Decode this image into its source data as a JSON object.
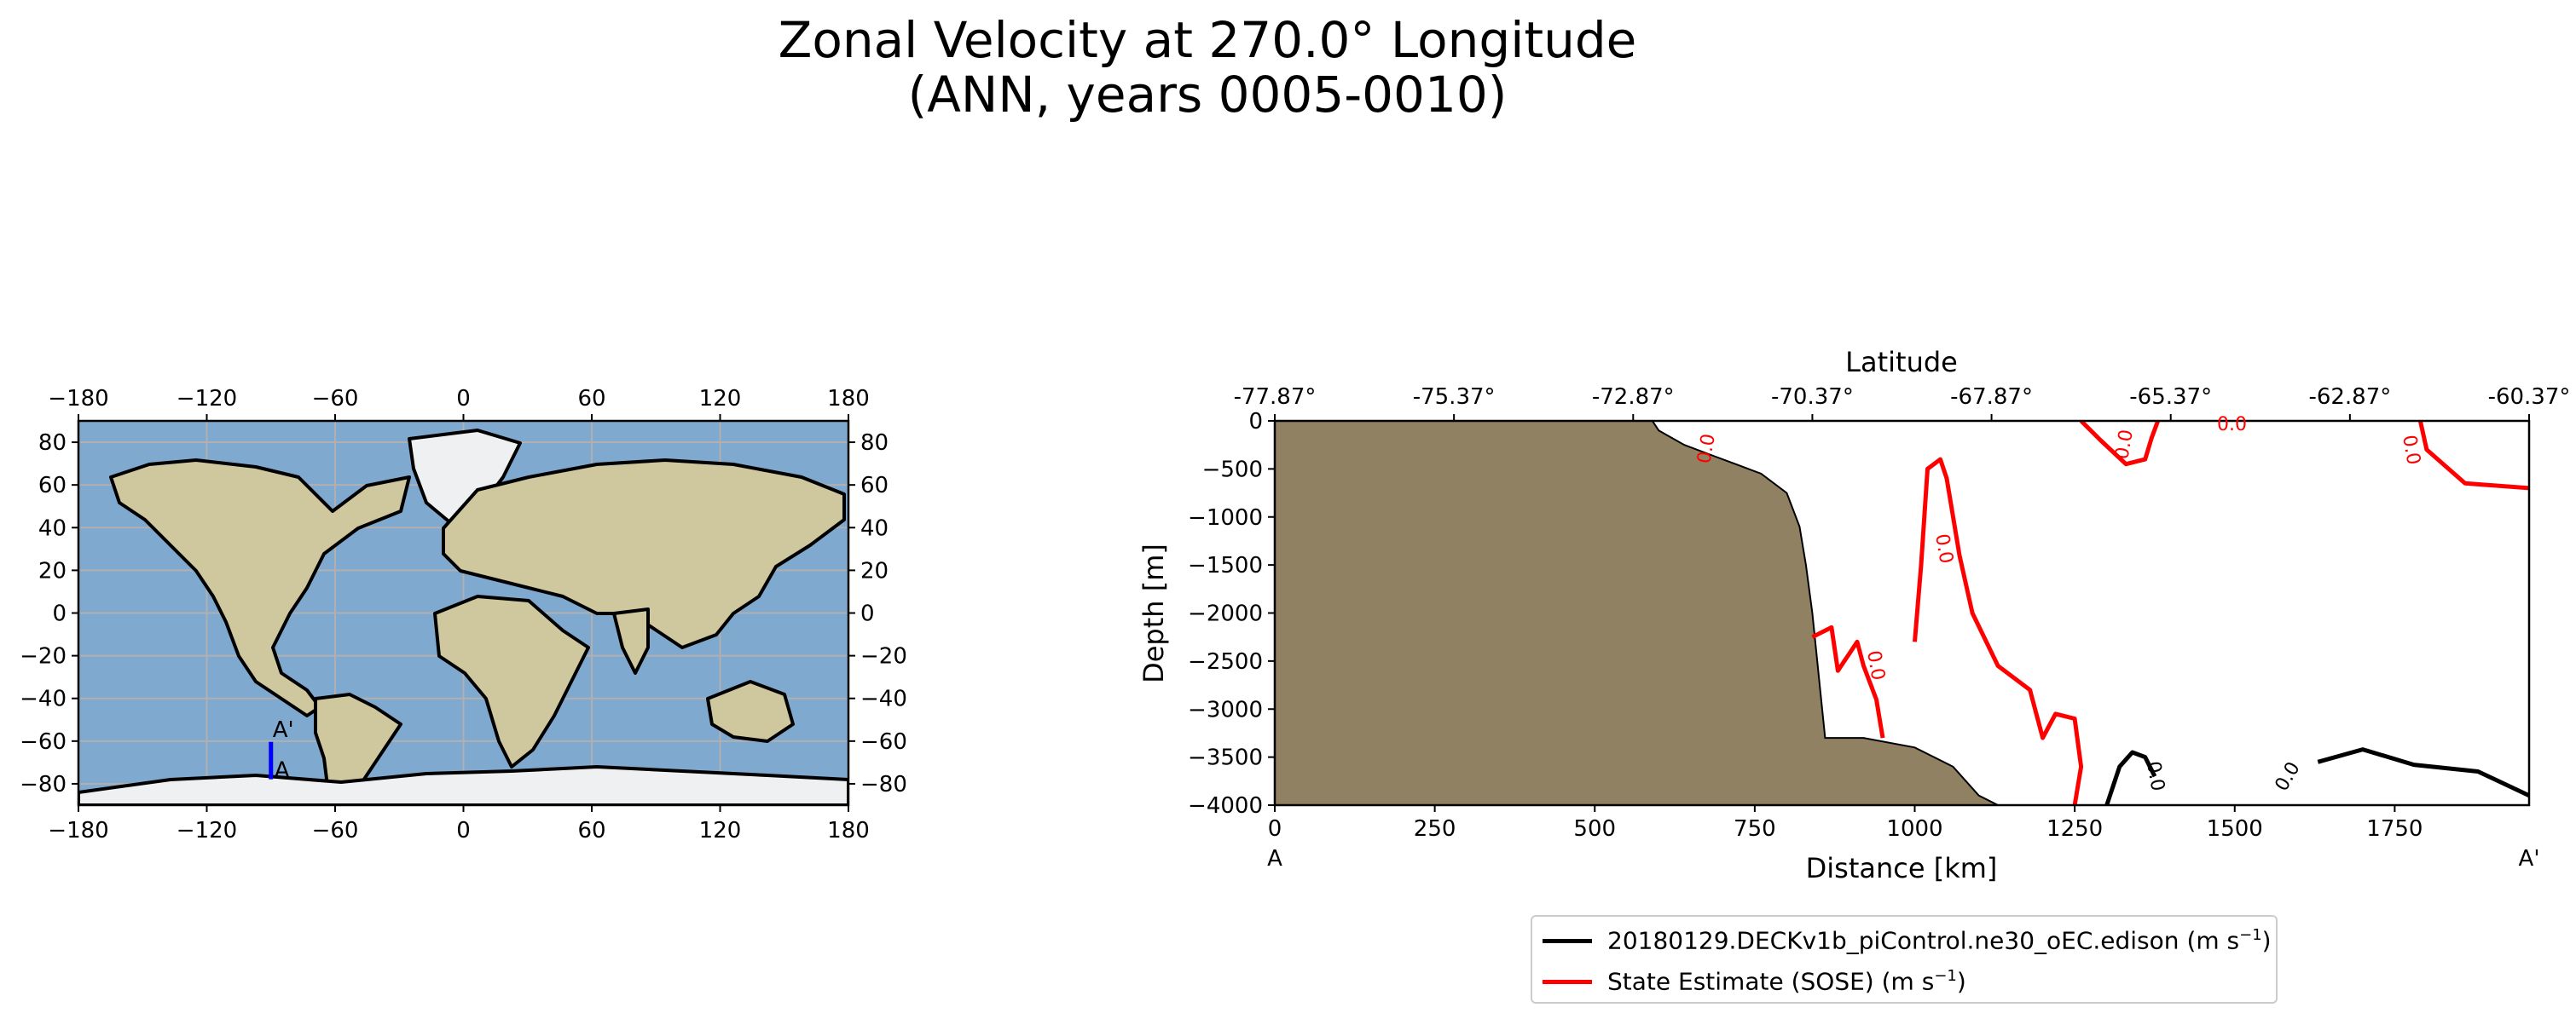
{
  "title": {
    "line1": "Zonal Velocity at 270.0° Longitude",
    "line2": "(ANN, years 0005-0010)"
  },
  "map_panel": {
    "top_ticks": [
      "−180",
      "−120",
      "−60",
      "0",
      "60",
      "120",
      "180"
    ],
    "bottom_ticks": [
      "−180",
      "−120",
      "−60",
      "0",
      "60",
      "120",
      "180"
    ],
    "left_ticks": [
      "80",
      "60",
      "40",
      "20",
      "0",
      "−20",
      "−40",
      "−60",
      "−80"
    ],
    "right_ticks": [
      "80",
      "60",
      "40",
      "20",
      "0",
      "−20",
      "−40",
      "−60",
      "−80"
    ],
    "transect_start_label": "A",
    "transect_end_label": "A'",
    "transect": {
      "lon": -90,
      "lat_start": -77.87,
      "lat_end": -60.37
    },
    "colors": {
      "ocean": "#7fa9cf",
      "land": "#c9c39a",
      "ice": "#f1f3f6",
      "transect": "#0000ff"
    }
  },
  "section_panel": {
    "ylabel": "Depth [m]",
    "xlabel": "Distance [km]",
    "top_axis_label": "Latitude",
    "x_ticks": [
      "0",
      "250",
      "500",
      "750",
      "1000",
      "1250",
      "1500",
      "1750"
    ],
    "y_ticks": [
      "0",
      "−500",
      "−1000",
      "−1500",
      "−2000",
      "−2500",
      "−3000",
      "−3500",
      "−4000"
    ],
    "top_ticks": [
      "-77.87°",
      "-75.37°",
      "-72.87°",
      "-70.37°",
      "-67.87°",
      "-65.37°",
      "-62.87°",
      "-60.37°"
    ],
    "start_label": "A",
    "end_label": "A'",
    "contour_labels": [
      "0.0",
      "0.0",
      "0.0",
      "0.0",
      "0.0",
      "0.0",
      "0.0",
      "0.0"
    ],
    "colors": {
      "bathymetry": "#918163",
      "model": "#000000",
      "obs": "#ff0000"
    }
  },
  "legend": {
    "model_label": "20180129.DECKv1b_piControl.ne30_oEC.edison",
    "obs_label": "State Estimate (SOSE)",
    "units_prefix": "(m s",
    "units_exp": "−1",
    "units_suffix": ")"
  },
  "chart_data": [
    {
      "type": "map",
      "xlim": [
        -180,
        180
      ],
      "ylim": [
        -90,
        90
      ],
      "grid": true,
      "transect": {
        "lon": -90,
        "lat_start": -77.87,
        "lat_end": -60.37,
        "labels": [
          "A",
          "A'"
        ]
      }
    },
    {
      "type": "contour",
      "xlabel": "Distance [km]",
      "ylabel": "Depth [m]",
      "top_xlabel": "Latitude",
      "xlim": [
        0,
        1960
      ],
      "ylim": [
        -4000,
        0
      ],
      "x_ticks": [
        0,
        250,
        500,
        750,
        1000,
        1250,
        1500,
        1750
      ],
      "y_ticks": [
        0,
        -500,
        -1000,
        -1500,
        -2000,
        -2500,
        -3000,
        -3500,
        -4000
      ],
      "top_ticks": [
        -77.87,
        -75.37,
        -72.87,
        -70.37,
        -67.87,
        -65.37,
        -62.87,
        -60.37
      ],
      "contour_level": 0.0,
      "series": [
        {
          "name": "20180129.DECKv1b_piControl.ne30_oEC.edison",
          "color": "#000000"
        },
        {
          "name": "State Estimate (SOSE)",
          "color": "#ff0000"
        }
      ],
      "bathymetry_profile": [
        [
          0,
          0
        ],
        [
          590,
          0
        ],
        [
          600,
          -100
        ],
        [
          640,
          -250
        ],
        [
          680,
          -350
        ],
        [
          720,
          -450
        ],
        [
          760,
          -550
        ],
        [
          800,
          -750
        ],
        [
          820,
          -1100
        ],
        [
          830,
          -1500
        ],
        [
          840,
          -2000
        ],
        [
          850,
          -2650
        ],
        [
          860,
          -3300
        ],
        [
          920,
          -3300
        ],
        [
          1000,
          -3400
        ],
        [
          1060,
          -3600
        ],
        [
          1100,
          -3900
        ],
        [
          1130,
          -4000
        ],
        [
          0,
          -4000
        ]
      ],
      "model_zero_contours": [
        [
          [
            1300,
            -4000
          ],
          [
            1320,
            -3600
          ],
          [
            1340,
            -3450
          ],
          [
            1360,
            -3500
          ],
          [
            1375,
            -3700
          ]
        ],
        [
          [
            1630,
            -3550
          ],
          [
            1700,
            -3420
          ],
          [
            1780,
            -3580
          ],
          [
            1880,
            -3650
          ],
          [
            1960,
            -3900
          ]
        ]
      ],
      "obs_zero_contours": [
        [
          [
            1000,
            -2300
          ],
          [
            1010,
            -1500
          ],
          [
            1020,
            -500
          ],
          [
            1040,
            -400
          ],
          [
            1050,
            -600
          ],
          [
            1070,
            -1400
          ],
          [
            1090,
            -2000
          ],
          [
            1130,
            -2550
          ],
          [
            1180,
            -2800
          ],
          [
            1200,
            -3300
          ],
          [
            1220,
            -3050
          ],
          [
            1250,
            -3100
          ],
          [
            1260,
            -3600
          ],
          [
            1250,
            -4000
          ]
        ],
        [
          [
            1260,
            0
          ],
          [
            1290,
            -200
          ],
          [
            1330,
            -450
          ],
          [
            1360,
            -400
          ],
          [
            1370,
            -180
          ],
          [
            1380,
            0
          ]
        ],
        [
          [
            1790,
            0
          ],
          [
            1800,
            -300
          ],
          [
            1860,
            -650
          ],
          [
            1960,
            -700
          ]
        ],
        [
          [
            840,
            -2250
          ],
          [
            870,
            -2150
          ],
          [
            880,
            -2600
          ],
          [
            900,
            -2400
          ],
          [
            910,
            -2300
          ],
          [
            920,
            -2550
          ],
          [
            940,
            -2900
          ],
          [
            950,
            -3300
          ]
        ]
      ]
    }
  ]
}
